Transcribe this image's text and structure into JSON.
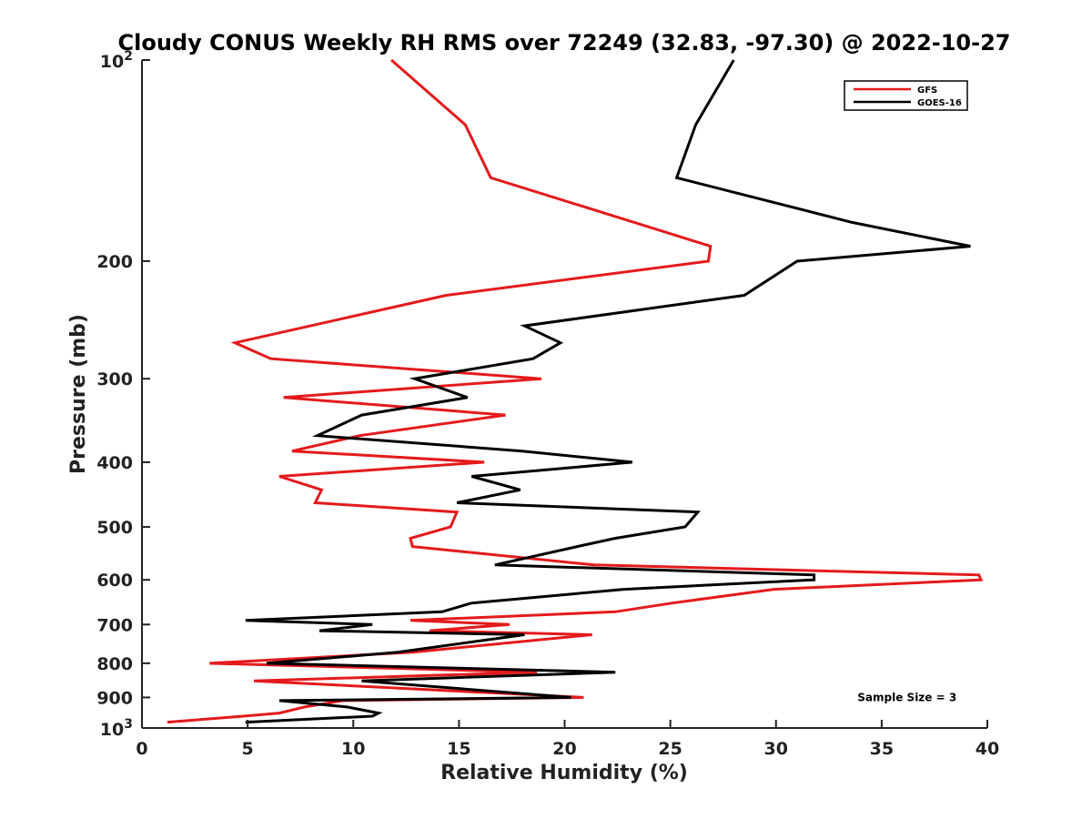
{
  "chart_data": {
    "type": "line",
    "title": "Cloudy CONUS Weekly RH RMS over 72249 (32.83, -97.30) @ 2022-10-27",
    "xlabel": "Relative Humidity (%)",
    "ylabel": "Pressure (mb)",
    "xlim": [
      0,
      40
    ],
    "ylim": [
      100,
      1000
    ],
    "y_scale": "log",
    "y_reversed": true,
    "grid": false,
    "legend_position": "top-right",
    "x_ticks": [
      0,
      5,
      10,
      15,
      20,
      25,
      30,
      35,
      40
    ],
    "x_tick_labels": [
      "0",
      "5",
      "10",
      "15",
      "20",
      "25",
      "30",
      "35",
      "40"
    ],
    "y_ticks": [
      200,
      300,
      400,
      500,
      600,
      700,
      800,
      900
    ],
    "y_tick_labels": [
      "200",
      "300",
      "400",
      "500",
      "600",
      "700",
      "800",
      "900"
    ],
    "y_decade_ticks": [
      {
        "value": 100,
        "base": "10",
        "exp": "2"
      },
      {
        "value": 1000,
        "base": "10",
        "exp": "3"
      }
    ],
    "series": [
      {
        "name": "GFS",
        "color": "#e41a1c",
        "points": [
          [
            11.8,
            100
          ],
          [
            15.3,
            125
          ],
          [
            16.5,
            150
          ],
          [
            23.3,
            175
          ],
          [
            26.9,
            190
          ],
          [
            26.8,
            200
          ],
          [
            14.4,
            225
          ],
          [
            4.4,
            265
          ],
          [
            6.1,
            280
          ],
          [
            18.9,
            300
          ],
          [
            6.7,
            320
          ],
          [
            17.2,
            340
          ],
          [
            10.3,
            365
          ],
          [
            7.1,
            385
          ],
          [
            16.2,
            400
          ],
          [
            6.5,
            420
          ],
          [
            8.5,
            440
          ],
          [
            8.2,
            460
          ],
          [
            14.9,
            475
          ],
          [
            14.6,
            500
          ],
          [
            12.7,
            520
          ],
          [
            12.8,
            535
          ],
          [
            21.4,
            570
          ],
          [
            39.6,
            590
          ],
          [
            39.7,
            600
          ],
          [
            29.9,
            620
          ],
          [
            25.1,
            650
          ],
          [
            22.4,
            670
          ],
          [
            12.7,
            690
          ],
          [
            17.4,
            700
          ],
          [
            13.6,
            715
          ],
          [
            21.3,
            725
          ],
          [
            12.8,
            770
          ],
          [
            3.2,
            800
          ],
          [
            18.7,
            825
          ],
          [
            5.3,
            850
          ],
          [
            20.9,
            900
          ],
          [
            9.5,
            910
          ],
          [
            7.7,
            930
          ],
          [
            6.5,
            950
          ],
          [
            4.8,
            960
          ],
          [
            1.2,
            980
          ]
        ]
      },
      {
        "name": "GOES-16",
        "color": "#000000",
        "points": [
          [
            28.0,
            100
          ],
          [
            26.2,
            125
          ],
          [
            25.3,
            150
          ],
          [
            33.6,
            175
          ],
          [
            39.2,
            190
          ],
          [
            31.0,
            200
          ],
          [
            28.5,
            225
          ],
          [
            18.1,
            250
          ],
          [
            19.8,
            265
          ],
          [
            18.5,
            280
          ],
          [
            12.9,
            300
          ],
          [
            15.4,
            320
          ],
          [
            10.4,
            340
          ],
          [
            8.3,
            365
          ],
          [
            18.0,
            385
          ],
          [
            23.2,
            400
          ],
          [
            15.6,
            420
          ],
          [
            17.9,
            440
          ],
          [
            14.9,
            460
          ],
          [
            26.3,
            475
          ],
          [
            25.7,
            500
          ],
          [
            22.4,
            520
          ],
          [
            20.6,
            535
          ],
          [
            16.7,
            570
          ],
          [
            31.8,
            590
          ],
          [
            31.8,
            600
          ],
          [
            22.8,
            620
          ],
          [
            15.6,
            650
          ],
          [
            14.2,
            670
          ],
          [
            4.9,
            690
          ],
          [
            10.9,
            700
          ],
          [
            8.4,
            715
          ],
          [
            18.1,
            725
          ],
          [
            12.1,
            770
          ],
          [
            5.9,
            800
          ],
          [
            22.4,
            825
          ],
          [
            10.4,
            850
          ],
          [
            20.3,
            900
          ],
          [
            6.5,
            910
          ],
          [
            9.7,
            930
          ],
          [
            11.2,
            950
          ],
          [
            10.9,
            960
          ],
          [
            4.9,
            980
          ]
        ]
      }
    ],
    "legend": [
      "GFS",
      "GOES-16"
    ],
    "annotations": [
      {
        "text": "Sample Size = 3",
        "x": 36.2,
        "y": 900
      }
    ]
  }
}
